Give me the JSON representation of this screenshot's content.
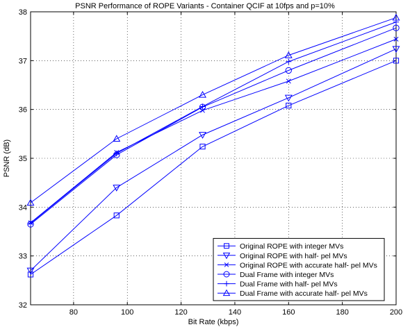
{
  "chart_data": {
    "type": "line",
    "title": "PSNR Performance of ROPE Variants -  Container QCIF at 10fps and p=10%",
    "xlabel": "Bit Rate (kbps)",
    "ylabel": "PSNR (dB)",
    "xlim": [
      64,
      200
    ],
    "ylim": [
      32,
      38
    ],
    "xticks": [
      80,
      100,
      120,
      140,
      160,
      180,
      200
    ],
    "yticks": [
      32,
      33,
      34,
      35,
      36,
      37,
      38
    ],
    "grid": true,
    "legend_position": "bottom-right",
    "x": [
      64,
      96,
      128,
      160,
      200
    ],
    "series": [
      {
        "name": "Original ROPE with integer MVs",
        "marker": "square",
        "values": [
          32.62,
          33.83,
          35.24,
          36.08,
          37.0
        ]
      },
      {
        "name": "Original ROPE with half- pel MVs",
        "marker": "triangle-down",
        "values": [
          32.7,
          34.4,
          35.48,
          36.24,
          37.24
        ]
      },
      {
        "name": "Original ROPE with accurate half- pel MVs",
        "marker": "x",
        "values": [
          33.68,
          35.12,
          35.98,
          36.58,
          37.44
        ]
      },
      {
        "name": "Dual Frame with integer MVs",
        "marker": "circle",
        "values": [
          33.65,
          35.07,
          36.05,
          36.8,
          37.67
        ]
      },
      {
        "name": "Dual Frame with half- pel MVs",
        "marker": "plus",
        "values": [
          33.67,
          35.1,
          36.06,
          36.98,
          37.79
        ]
      },
      {
        "name": "Dual Frame with accurate half- pel MVs",
        "marker": "triangle-up",
        "values": [
          34.09,
          35.4,
          36.3,
          37.11,
          37.88
        ]
      }
    ],
    "color": "#0000ff"
  }
}
